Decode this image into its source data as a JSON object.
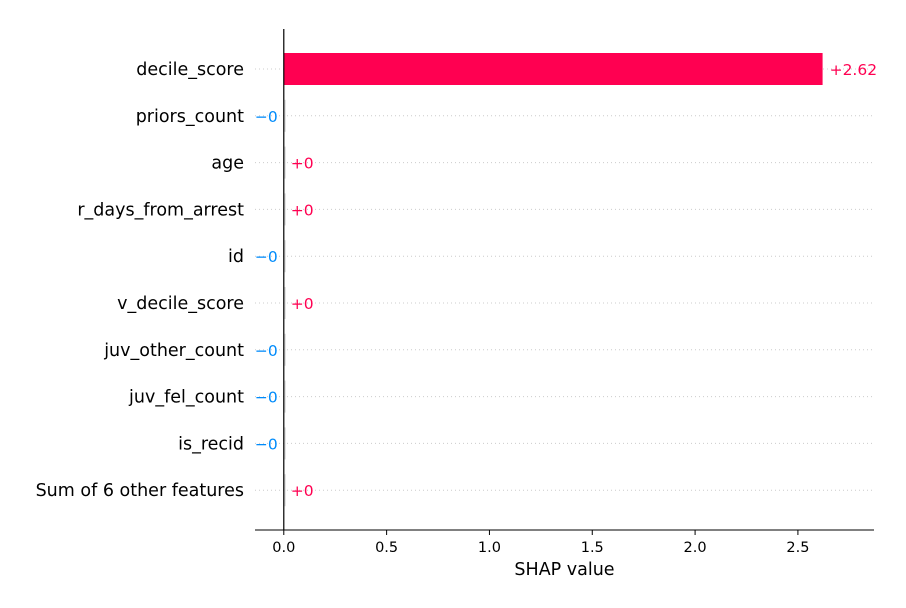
{
  "chart_data": {
    "type": "bar",
    "orientation": "horizontal",
    "categories": [
      "decile_score",
      "priors_count",
      "age",
      "r_days_from_arrest",
      "id",
      "v_decile_score",
      "juv_other_count",
      "juv_fel_count",
      "is_recid",
      "Sum of 6 other features"
    ],
    "values": [
      2.62,
      -0.0,
      0.0,
      0.0,
      -0.0,
      0.0,
      -0.0,
      -0.0,
      -0.0,
      0.0
    ],
    "value_labels": [
      "+2.62",
      "−0",
      "+0",
      "+0",
      "−0",
      "+0",
      "−0",
      "−0",
      "−0",
      "+0"
    ],
    "xlabel": "SHAP value",
    "xticks": [
      "0.0",
      "0.5",
      "1.0",
      "1.5",
      "2.0",
      "2.5"
    ],
    "xtick_values": [
      0,
      0.5,
      1.0,
      1.5,
      2.0,
      2.5
    ],
    "xlim": [
      -0.14,
      2.87
    ],
    "grid": "dotted row lines",
    "colors": {
      "positive": "#ff0051",
      "negative": "#008bfb",
      "axis": "#000000",
      "gridline": "#cccccc"
    }
  }
}
